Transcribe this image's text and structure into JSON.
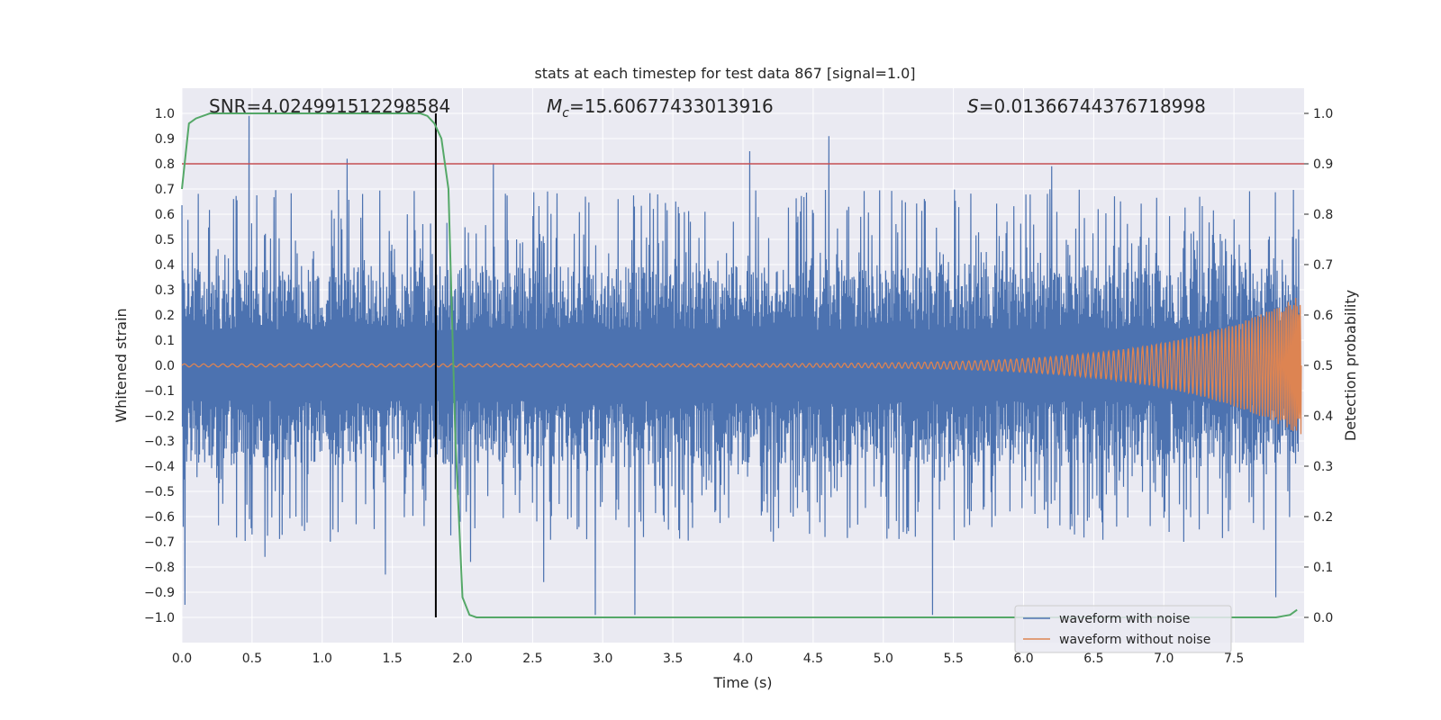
{
  "chart_data": {
    "type": "line",
    "title": "stats at each timestep for test data 867 [signal=1.0]",
    "xlabel": "Time (s)",
    "ylabel": "Whitened strain",
    "y2label": "Detection probability",
    "xlim": [
      0.0,
      8.0
    ],
    "ylim": [
      -1.1,
      1.1
    ],
    "y2lim": [
      -0.05,
      1.05
    ],
    "x_ticks": [
      0.0,
      0.5,
      1.0,
      1.5,
      2.0,
      2.5,
      3.0,
      3.5,
      4.0,
      4.5,
      5.0,
      5.5,
      6.0,
      6.5,
      7.0,
      7.5
    ],
    "x_tick_labels": [
      "0.0",
      "0.5",
      "1.0",
      "1.5",
      "2.0",
      "2.5",
      "3.0",
      "3.5",
      "4.0",
      "4.5",
      "5.0",
      "5.5",
      "6.0",
      "6.5",
      "7.0",
      "7.5"
    ],
    "y_ticks": [
      -1.0,
      -0.9,
      -0.8,
      -0.7,
      -0.6,
      -0.5,
      -0.4,
      -0.3,
      -0.2,
      -0.1,
      0.0,
      0.1,
      0.2,
      0.3,
      0.4,
      0.5,
      0.6,
      0.7,
      0.8,
      0.9,
      1.0
    ],
    "y_tick_labels": [
      "−1.0",
      "−0.9",
      "−0.8",
      "−0.7",
      "−0.6",
      "−0.5",
      "−0.4",
      "−0.3",
      "−0.2",
      "−0.1",
      "0.0",
      "0.1",
      "0.2",
      "0.3",
      "0.4",
      "0.5",
      "0.6",
      "0.7",
      "0.8",
      "0.9",
      "1.0"
    ],
    "y2_ticks": [
      0.0,
      0.1,
      0.2,
      0.3,
      0.4,
      0.5,
      0.6,
      0.7,
      0.8,
      0.9,
      1.0
    ],
    "y2_tick_labels": [
      "0.0",
      "0.1",
      "0.2",
      "0.3",
      "0.4",
      "0.5",
      "0.6",
      "0.7",
      "0.8",
      "0.9",
      "1.0"
    ],
    "grid": true,
    "legend_position": "bottom-right",
    "annotations": {
      "snr": "SNR=4.024991512298584",
      "mc_symbol": "M",
      "mc_sub": "c",
      "mc_value": "=15.60677433013916",
      "s_symbol": "S",
      "s_value": "=0.01366744376718998"
    },
    "series": [
      {
        "name": "waveform with noise",
        "color": "#4c72b0",
        "axis": "left",
        "kind": "noise",
        "envelope_abs": 0.4,
        "peaks": [
          {
            "x": 0.02,
            "y": -0.95
          },
          {
            "x": 0.48,
            "y": 0.99
          },
          {
            "x": 0.59,
            "y": -0.76
          },
          {
            "x": 1.18,
            "y": 0.82
          },
          {
            "x": 1.45,
            "y": -0.83
          },
          {
            "x": 2.06,
            "y": -0.78
          },
          {
            "x": 2.22,
            "y": 0.8
          },
          {
            "x": 2.58,
            "y": -0.86
          },
          {
            "x": 2.95,
            "y": -0.99
          },
          {
            "x": 3.23,
            "y": -0.99
          },
          {
            "x": 4.05,
            "y": 0.85
          },
          {
            "x": 4.61,
            "y": 0.91
          },
          {
            "x": 5.35,
            "y": -0.99
          },
          {
            "x": 6.2,
            "y": 0.79
          },
          {
            "x": 7.8,
            "y": -0.92
          }
        ]
      },
      {
        "name": "waveform without noise",
        "color": "#dd8452",
        "axis": "left",
        "kind": "chirp",
        "amplitude_start": 0.006,
        "amplitude_end": 0.28,
        "cycles": 180
      },
      {
        "name": "detection probability",
        "color": "#55a868",
        "axis": "right",
        "x": [
          0.0,
          0.05,
          0.1,
          0.2,
          0.3,
          0.5,
          0.8,
          1.0,
          1.2,
          1.4,
          1.6,
          1.7,
          1.75,
          1.8,
          1.85,
          1.9,
          1.95,
          2.0,
          2.05,
          2.1,
          2.3,
          2.5,
          3.0,
          3.5,
          4.0,
          4.5,
          5.0,
          5.5,
          6.0,
          6.5,
          7.0,
          7.5,
          7.8,
          7.9,
          7.95
        ],
        "y": [
          0.85,
          0.98,
          0.99,
          1.0,
          1.0,
          1.0,
          1.0,
          1.0,
          1.0,
          1.0,
          1.0,
          1.0,
          0.995,
          0.98,
          0.95,
          0.85,
          0.35,
          0.04,
          0.005,
          0.0,
          0.0,
          0.0,
          0.0,
          0.0,
          0.0,
          0.0,
          0.0,
          0.0,
          0.0,
          0.0,
          0.0,
          0.0,
          0.0,
          0.005,
          0.015
        ]
      }
    ],
    "threshold_line": {
      "y2": 0.9,
      "color": "#c44e52"
    },
    "vertical_line": {
      "x": 1.81,
      "y_from": -1.0,
      "y_to": 1.0,
      "color": "#000000"
    },
    "legend": [
      {
        "label": "waveform with noise",
        "color": "#4c72b0"
      },
      {
        "label": "waveform without noise",
        "color": "#dd8452"
      }
    ]
  }
}
